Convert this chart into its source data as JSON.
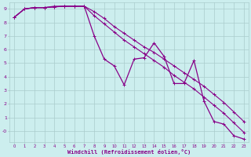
{
  "xlabel": "Windchill (Refroidissement éolien,°C)",
  "bg_color": "#cceeee",
  "grid_color": "#aacccc",
  "line_color": "#880088",
  "xlim": [
    -0.5,
    23.5
  ],
  "ylim": [
    -0.8,
    9.5
  ],
  "xticks": [
    0,
    1,
    2,
    3,
    4,
    5,
    6,
    7,
    8,
    9,
    10,
    11,
    12,
    13,
    14,
    15,
    16,
    17,
    18,
    19,
    20,
    21,
    22,
    23
  ],
  "yticks": [
    0,
    1,
    2,
    3,
    4,
    5,
    6,
    7,
    8,
    9
  ],
  "ytick_labels": [
    "-0",
    "1",
    "2",
    "3",
    "4",
    "5",
    "6",
    "7",
    "8",
    "9"
  ],
  "line_smooth1": [
    8.4,
    9.0,
    9.1,
    9.1,
    9.15,
    9.2,
    9.2,
    9.2,
    8.8,
    8.3,
    7.7,
    7.2,
    6.7,
    6.2,
    5.8,
    5.3,
    4.8,
    4.3,
    3.8,
    3.3,
    2.7,
    2.1,
    1.4,
    0.7
  ],
  "line_smooth2": [
    8.4,
    9.0,
    9.1,
    9.1,
    9.15,
    9.2,
    9.2,
    9.2,
    8.5,
    7.9,
    7.3,
    6.7,
    6.2,
    5.7,
    5.2,
    4.7,
    4.1,
    3.6,
    3.1,
    2.5,
    1.9,
    1.3,
    0.6,
    -0.1
  ],
  "line_jagged": [
    8.4,
    9.0,
    9.1,
    9.1,
    9.2,
    9.2,
    9.2,
    9.2,
    7.0,
    5.3,
    4.8,
    3.4,
    5.3,
    5.4,
    6.5,
    5.5,
    3.5,
    3.5,
    5.2,
    2.2,
    0.7,
    0.5,
    -0.35,
    -0.6
  ]
}
